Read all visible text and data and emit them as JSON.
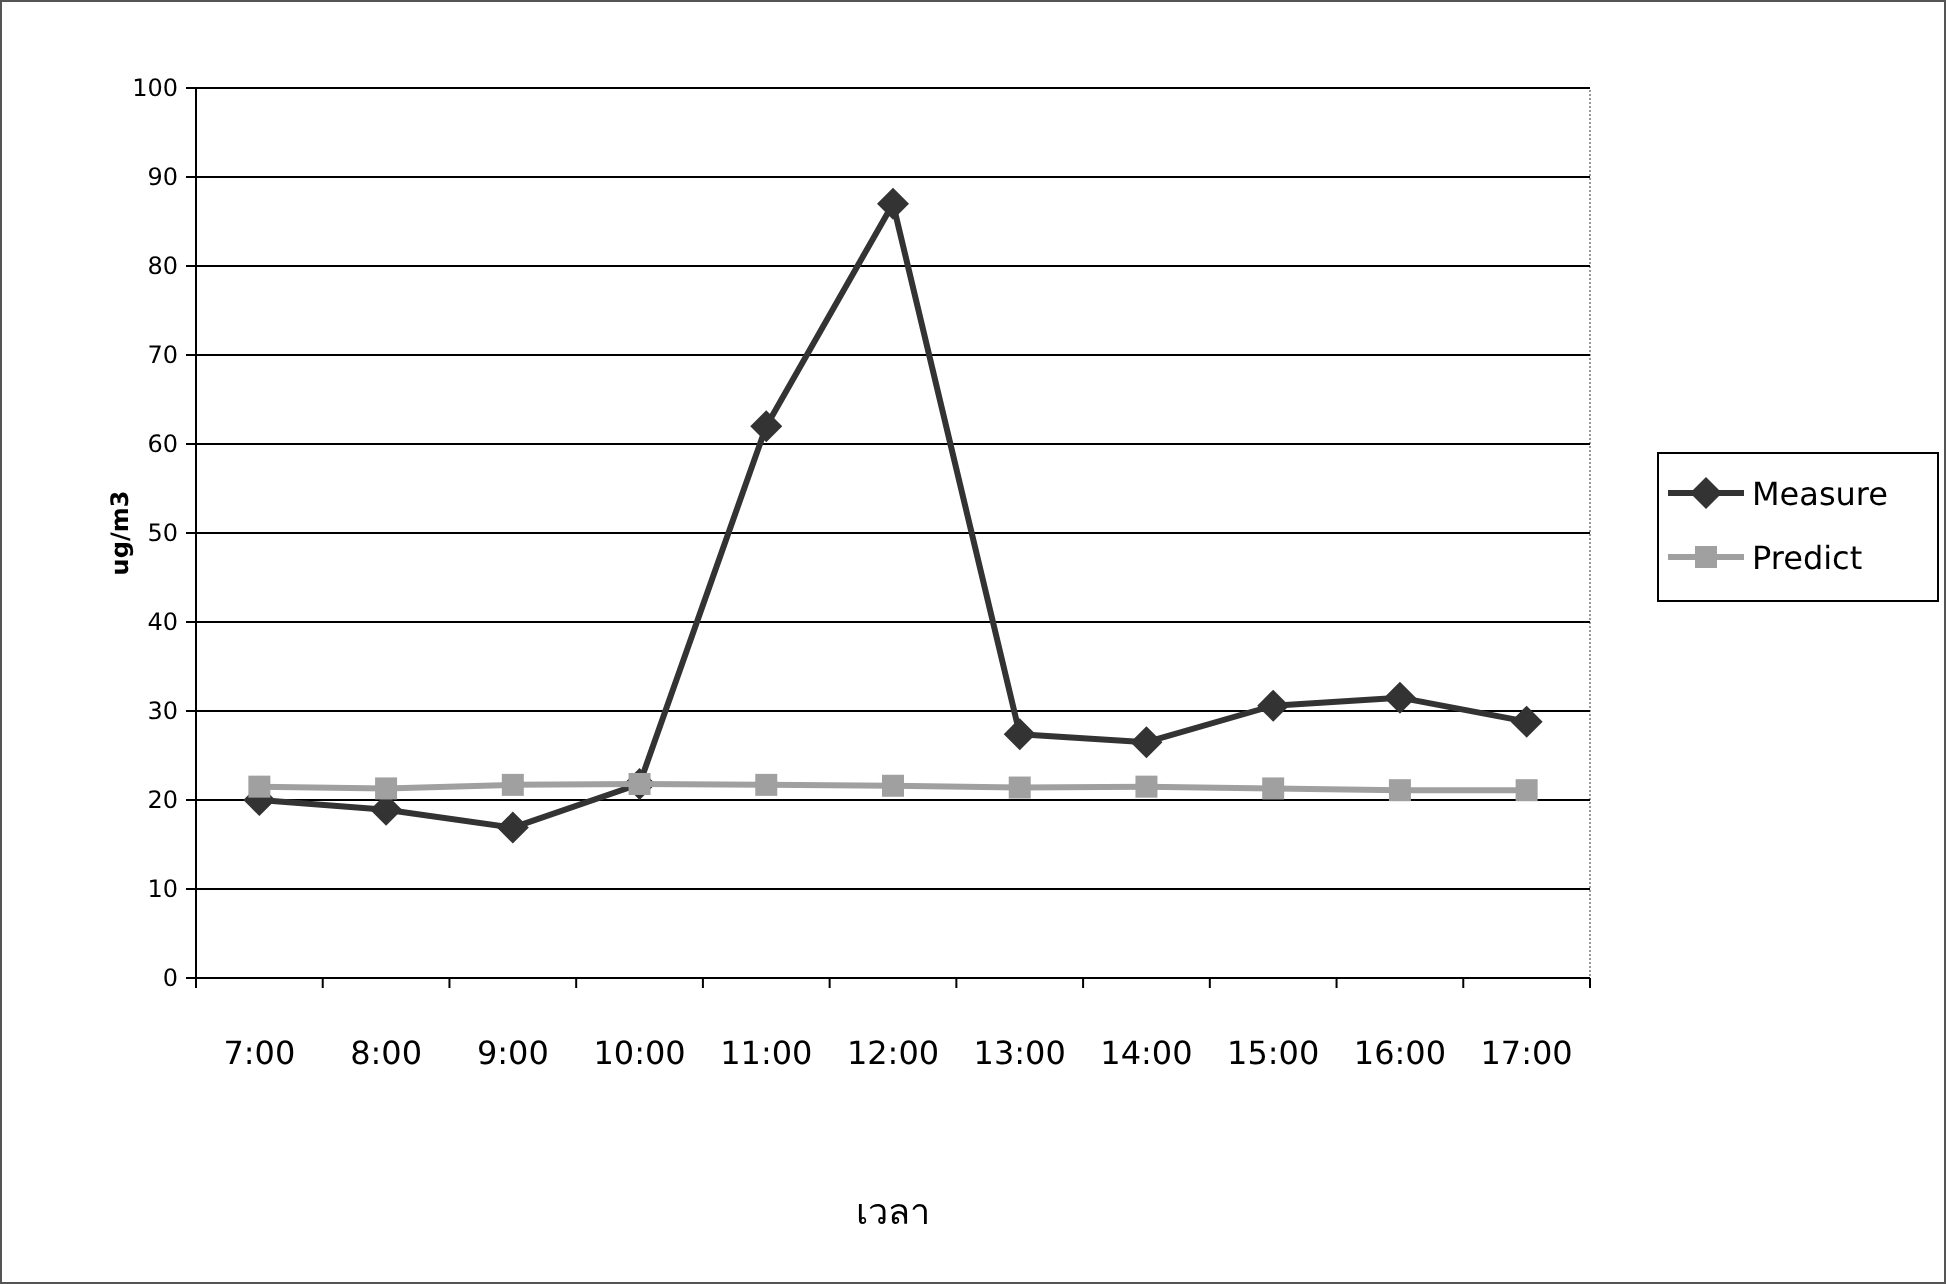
{
  "chart_data": {
    "type": "line",
    "xlabel": "เวลา",
    "ylabel": "ug/m3",
    "categories": [
      "7:00",
      "8:00",
      "9:00",
      "10:00",
      "11:00",
      "12:00",
      "13:00",
      "14:00",
      "15:00",
      "16:00",
      "17:00"
    ],
    "series": [
      {
        "name": "Measure",
        "color": "#333333",
        "marker": "diamond",
        "values": [
          20,
          18.9,
          16.9,
          21.8,
          62,
          87,
          27.4,
          26.5,
          30.6,
          31.5,
          28.8
        ]
      },
      {
        "name": "Predict",
        "color": "#a0a0a0",
        "marker": "square",
        "values": [
          21.5,
          21.3,
          21.7,
          21.8,
          21.7,
          21.6,
          21.4,
          21.5,
          21.3,
          21.1,
          21.1
        ]
      }
    ],
    "ylim": [
      0,
      100
    ],
    "yticks": [
      0,
      10,
      20,
      30,
      40,
      50,
      60,
      70,
      80,
      90,
      100
    ],
    "grid": "y",
    "legend": "right"
  }
}
